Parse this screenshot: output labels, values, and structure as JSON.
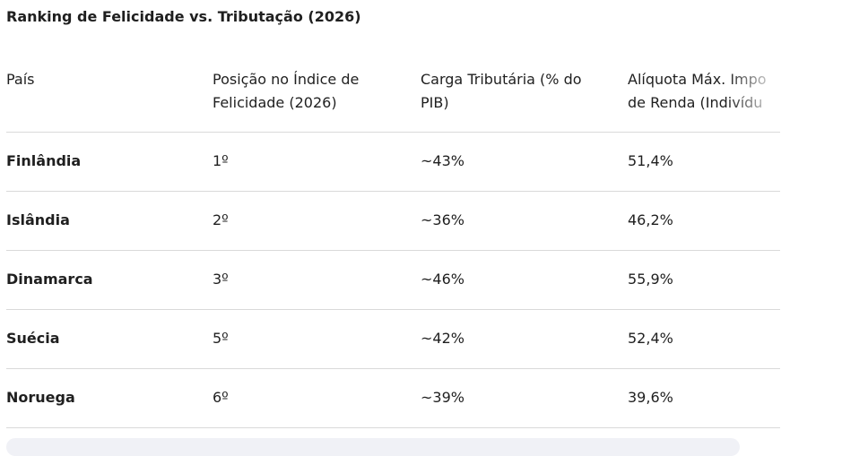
{
  "title": "Ranking de Felicidade vs. Tributação (2026)",
  "table": {
    "header": [
      [
        "País"
      ],
      [
        "Posição no Índice de",
        "Felicidade (2026)"
      ],
      [
        "Carga Tributária (% do",
        "PIB)"
      ],
      [
        "Alíquota Máx. Impo",
        "de Renda (Indivídu"
      ]
    ],
    "rows": [
      [
        "Finlândia",
        "1º",
        "~43%",
        "51,4%"
      ],
      [
        "Islândia",
        "2º",
        "~36%",
        "46,2%"
      ],
      [
        "Dinamarca",
        "3º",
        "~46%",
        "55,9%"
      ],
      [
        "Suécia",
        "5º",
        "~42%",
        "52,4%"
      ],
      [
        "Noruega",
        "6º",
        "~39%",
        "39,6%"
      ]
    ]
  }
}
